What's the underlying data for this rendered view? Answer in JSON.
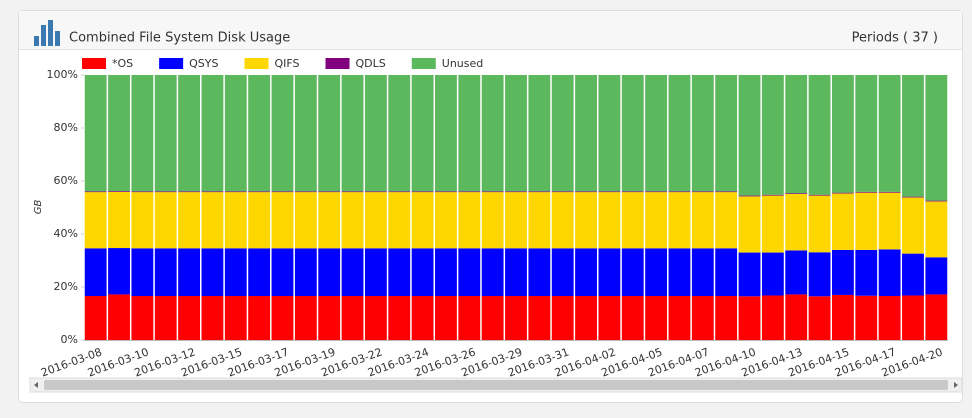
{
  "chart_data": {
    "type": "stacked_bar_percent",
    "title": "Combined File System Disk Usage",
    "periods_label": "Periods ( 37 )",
    "y_label": "GB",
    "categories": [
      "2016-03-08",
      null,
      "2016-03-10",
      null,
      "2016-03-12",
      null,
      "2016-03-15",
      null,
      "2016-03-17",
      null,
      "2016-03-19",
      null,
      "2016-03-22",
      null,
      "2016-03-24",
      null,
      "2016-03-26",
      null,
      "2016-03-29",
      null,
      "2016-03-31",
      null,
      "2016-04-02",
      null,
      "2016-04-05",
      null,
      "2016-04-07",
      null,
      "2016-04-10",
      null,
      "2016-04-13",
      null,
      "2016-04-15",
      null,
      "2016-04-17",
      null,
      "2016-04-20"
    ],
    "series": [
      {
        "name": "*OS",
        "color": "#ff0000",
        "values": [
          16.6,
          17.2,
          16.6,
          16.6,
          16.6,
          16.6,
          16.6,
          16.6,
          16.6,
          16.6,
          16.6,
          16.6,
          16.6,
          16.6,
          16.6,
          16.6,
          16.6,
          16.6,
          16.6,
          16.6,
          16.6,
          16.6,
          16.6,
          16.6,
          16.6,
          16.6,
          16.6,
          16.6,
          16.5,
          16.8,
          17.2,
          16.5,
          17.0,
          16.7,
          16.6,
          16.8,
          17.2
        ]
      },
      {
        "name": "QSYS",
        "color": "#0000ff",
        "values": [
          18.0,
          17.5,
          18.0,
          18.0,
          18.0,
          18.0,
          18.0,
          18.0,
          18.0,
          18.0,
          18.0,
          18.0,
          18.0,
          18.0,
          18.0,
          18.0,
          18.0,
          18.0,
          18.0,
          18.0,
          18.0,
          18.0,
          18.0,
          18.0,
          18.0,
          18.0,
          18.0,
          18.0,
          16.5,
          16.2,
          16.6,
          16.6,
          17.0,
          17.3,
          17.6,
          15.8,
          14.0
        ]
      },
      {
        "name": "QIFS",
        "color": "#ffd700",
        "values": [
          21.2,
          21.2,
          21.2,
          21.2,
          21.2,
          21.2,
          21.2,
          21.2,
          21.2,
          21.2,
          21.2,
          21.2,
          21.2,
          21.2,
          21.2,
          21.2,
          21.2,
          21.2,
          21.2,
          21.2,
          21.2,
          21.2,
          21.2,
          21.2,
          21.2,
          21.2,
          21.2,
          21.2,
          21.2,
          21.5,
          21.3,
          21.4,
          21.3,
          21.6,
          21.4,
          21.2,
          21.1
        ]
      },
      {
        "name": "QDLS",
        "color": "#800080",
        "values": [
          0.3,
          0.3,
          0.3,
          0.3,
          0.3,
          0.3,
          0.3,
          0.3,
          0.3,
          0.3,
          0.3,
          0.3,
          0.3,
          0.3,
          0.3,
          0.3,
          0.3,
          0.3,
          0.3,
          0.3,
          0.3,
          0.3,
          0.3,
          0.3,
          0.3,
          0.3,
          0.3,
          0.3,
          0.3,
          0.3,
          0.3,
          0.3,
          0.3,
          0.3,
          0.3,
          0.3,
          0.3
        ]
      },
      {
        "name": "Unused",
        "color": "#5cb85c",
        "values": [
          43.9,
          43.8,
          43.9,
          43.9,
          43.9,
          43.9,
          43.9,
          43.9,
          43.9,
          43.9,
          43.9,
          43.9,
          43.9,
          43.9,
          43.9,
          43.9,
          43.9,
          43.9,
          43.9,
          43.9,
          43.9,
          43.9,
          43.9,
          43.9,
          43.9,
          43.9,
          43.9,
          43.9,
          45.5,
          45.2,
          44.6,
          45.2,
          44.4,
          44.1,
          44.1,
          45.9,
          47.4
        ]
      }
    ],
    "ylim": [
      0,
      100
    ],
    "yticks": [
      {
        "value": 0,
        "label": "0%"
      },
      {
        "value": 20,
        "label": "20%"
      },
      {
        "value": 40,
        "label": "40%"
      },
      {
        "value": 60,
        "label": "60%"
      },
      {
        "value": 80,
        "label": "80%"
      },
      {
        "value": 100,
        "label": "100%"
      }
    ],
    "grid": false
  }
}
